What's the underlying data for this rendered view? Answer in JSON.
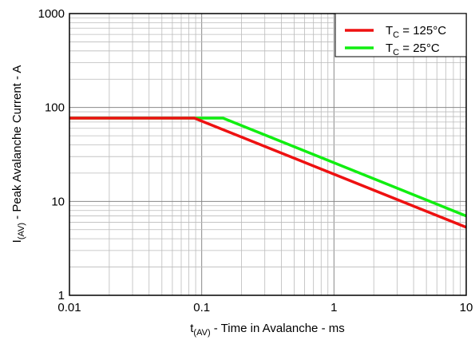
{
  "chart_data": {
    "type": "line",
    "xscale": "log",
    "yscale": "log",
    "xlim": [
      0.01,
      10
    ],
    "ylim": [
      1,
      1000
    ],
    "grid": true,
    "legend_position": "top-right",
    "xlabel": {
      "main": "t",
      "sub": "(AV)",
      "rest": " - Time in Avalanche - ms"
    },
    "ylabel": {
      "main": "I",
      "sub": "(AV)",
      "rest": " - Peak Avalanche Current - A"
    },
    "xticks": [
      "0.01",
      "0.1",
      "1",
      "10"
    ],
    "xtick_values": [
      0.01,
      0.1,
      1,
      10
    ],
    "yticks": [
      "1",
      "10",
      "100",
      "1000"
    ],
    "ytick_values": [
      1,
      10,
      100,
      1000
    ],
    "series": [
      {
        "legend_main": "T",
        "legend_sub": "C",
        "legend_rest": " = 125°C",
        "color": "#ee1111",
        "x": [
          0.01,
          0.088,
          10
        ],
        "y": [
          77,
          77,
          5.3
        ]
      },
      {
        "legend_main": "T",
        "legend_sub": "C",
        "legend_rest": " = 25°C",
        "color": "#11ee11",
        "x": [
          0.01,
          0.145,
          10
        ],
        "y": [
          77,
          77,
          7.0
        ]
      }
    ]
  }
}
